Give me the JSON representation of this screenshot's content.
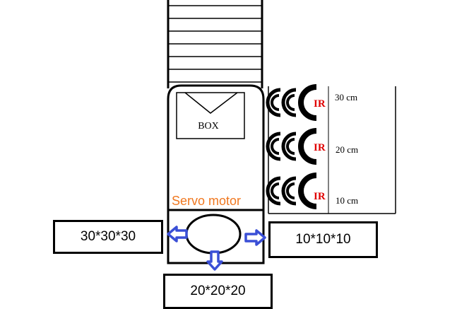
{
  "box_label": "BOX",
  "servo_label": "Servo motor",
  "outputs": {
    "left": "30*30*30",
    "right": "10*10*10",
    "bottom": "20*20*20"
  },
  "sensors": [
    {
      "label": "IR",
      "distance": "30 cm"
    },
    {
      "label": "IR",
      "distance": "20 cm"
    },
    {
      "label": "IR",
      "distance": "10 cm"
    }
  ],
  "colors": {
    "ir_label": "#e00000",
    "servo_label": "#f07820",
    "arrow": "#3a4fd6"
  }
}
